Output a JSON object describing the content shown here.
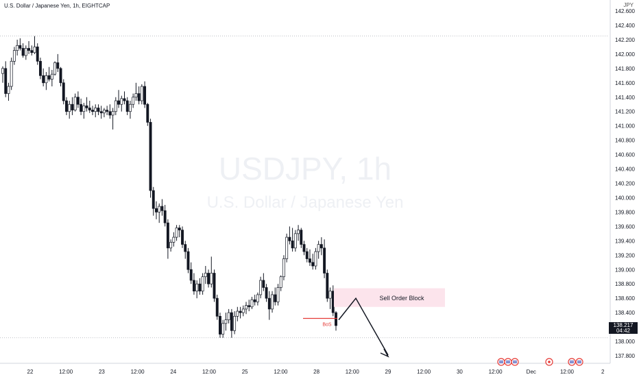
{
  "header": {
    "title": "U.S. Dollar / Japanese Yen, 1h, EIGHTCAP",
    "currency": "JPY"
  },
  "watermark": {
    "symbol": "USDJPY, 1h",
    "name": "U.S. Dollar / Japanese Yen"
  },
  "price_tag": {
    "price": "138.217",
    "countdown": "04:42"
  },
  "chart_data": {
    "type": "candlestick",
    "title": "U.S. Dollar / Japanese Yen, 1h, EIGHTCAP",
    "ylabel": "JPY",
    "ylim": [
      137.7,
      142.7
    ],
    "y_ticks": [
      "142.600",
      "142.400",
      "142.200",
      "142.000",
      "141.800",
      "141.600",
      "141.400",
      "141.200",
      "141.000",
      "140.800",
      "140.600",
      "140.400",
      "140.200",
      "140.000",
      "139.800",
      "139.600",
      "139.400",
      "139.200",
      "139.000",
      "138.800",
      "138.600",
      "138.400",
      "138.200",
      "138.000",
      "137.800"
    ],
    "x_ticks": [
      "22",
      "12:00",
      "23",
      "12:00",
      "24",
      "12:00",
      "25",
      "12:00",
      "28",
      "12:00",
      "29",
      "12:00",
      "30",
      "12:00",
      "Dec",
      "12:00",
      "2"
    ],
    "last_price": 138.217,
    "horizontal_lines": [
      142.25,
      138.05
    ],
    "annotations": {
      "order_block": {
        "label": "Sell Order Block",
        "top": 138.74,
        "bottom": 138.48
      },
      "bos": {
        "label": "BoS",
        "price": 138.32
      },
      "projection": [
        138.3,
        138.6,
        137.81
      ]
    },
    "ohlc": [
      [
        141.73,
        141.83,
        141.6,
        141.8
      ],
      [
        141.8,
        141.9,
        141.4,
        141.45
      ],
      [
        141.45,
        141.6,
        141.35,
        141.55
      ],
      [
        141.55,
        141.95,
        141.5,
        141.9
      ],
      [
        141.9,
        142.1,
        141.85,
        142.05
      ],
      [
        142.05,
        142.2,
        141.98,
        142.12
      ],
      [
        142.12,
        142.22,
        142.05,
        142.08
      ],
      [
        142.08,
        142.15,
        141.95,
        141.98
      ],
      [
        141.98,
        142.12,
        141.92,
        142.08
      ],
      [
        142.08,
        142.18,
        142.0,
        142.05
      ],
      [
        142.05,
        142.12,
        141.98,
        142.02
      ],
      [
        142.02,
        142.25,
        142.0,
        142.1
      ],
      [
        142.1,
        142.15,
        141.85,
        141.9
      ],
      [
        141.9,
        141.95,
        141.65,
        141.7
      ],
      [
        141.7,
        141.8,
        141.55,
        141.6
      ],
      [
        141.6,
        141.75,
        141.5,
        141.7
      ],
      [
        141.7,
        141.82,
        141.62,
        141.65
      ],
      [
        141.65,
        141.78,
        141.55,
        141.72
      ],
      [
        141.72,
        141.9,
        141.7,
        141.88
      ],
      [
        141.88,
        142.0,
        141.75,
        141.8
      ],
      [
        141.8,
        141.82,
        141.55,
        141.6
      ],
      [
        141.6,
        141.65,
        141.3,
        141.35
      ],
      [
        141.35,
        141.4,
        141.15,
        141.2
      ],
      [
        141.2,
        141.35,
        141.1,
        141.3
      ],
      [
        141.3,
        141.4,
        141.15,
        141.22
      ],
      [
        141.22,
        141.45,
        141.2,
        141.4
      ],
      [
        141.4,
        141.48,
        141.25,
        141.3
      ],
      [
        141.3,
        141.38,
        141.15,
        141.2
      ],
      [
        141.2,
        141.32,
        141.1,
        141.28
      ],
      [
        141.28,
        141.4,
        141.2,
        141.25
      ],
      [
        141.25,
        141.35,
        141.18,
        141.22
      ],
      [
        141.22,
        141.28,
        141.15,
        141.2
      ],
      [
        141.2,
        141.3,
        141.12,
        141.25
      ],
      [
        141.25,
        141.3,
        141.15,
        141.2
      ],
      [
        141.2,
        141.28,
        141.1,
        141.18
      ],
      [
        141.18,
        141.25,
        141.12,
        141.22
      ],
      [
        141.22,
        141.28,
        141.15,
        141.2
      ],
      [
        141.2,
        141.3,
        141.1,
        141.15
      ],
      [
        141.15,
        141.25,
        140.95,
        141.2
      ],
      [
        141.2,
        141.4,
        141.15,
        141.35
      ],
      [
        141.35,
        141.5,
        141.25,
        141.3
      ],
      [
        141.3,
        141.42,
        141.2,
        141.38
      ],
      [
        141.38,
        141.48,
        141.3,
        141.35
      ],
      [
        141.35,
        141.4,
        141.15,
        141.2
      ],
      [
        141.2,
        141.35,
        141.1,
        141.3
      ],
      [
        141.3,
        141.45,
        141.25,
        141.4
      ],
      [
        141.4,
        141.6,
        141.35,
        141.45
      ],
      [
        141.45,
        141.55,
        141.3,
        141.35
      ],
      [
        141.35,
        141.58,
        141.3,
        141.55
      ],
      [
        141.55,
        141.62,
        141.25,
        141.3
      ],
      [
        141.3,
        141.32,
        141.0,
        141.05
      ],
      [
        141.05,
        141.1,
        140.0,
        140.1
      ],
      [
        140.1,
        140.15,
        139.75,
        139.85
      ],
      [
        139.85,
        139.95,
        139.7,
        139.8
      ],
      [
        139.8,
        139.92,
        139.65,
        139.88
      ],
      [
        139.88,
        139.98,
        139.75,
        139.82
      ],
      [
        139.82,
        139.9,
        139.6,
        139.65
      ],
      [
        139.65,
        139.7,
        139.15,
        139.3
      ],
      [
        139.3,
        139.42,
        139.25,
        139.38
      ],
      [
        139.38,
        139.52,
        139.32,
        139.45
      ],
      [
        139.45,
        139.62,
        139.4,
        139.58
      ],
      [
        139.58,
        139.62,
        139.45,
        139.55
      ],
      [
        139.55,
        139.6,
        139.3,
        139.35
      ],
      [
        139.35,
        139.4,
        139.15,
        139.25
      ],
      [
        139.25,
        139.3,
        138.95,
        139.0
      ],
      [
        139.0,
        139.1,
        138.8,
        138.85
      ],
      [
        138.85,
        138.95,
        138.65,
        138.7
      ],
      [
        138.7,
        138.85,
        138.6,
        138.8
      ],
      [
        138.8,
        138.88,
        138.65,
        138.7
      ],
      [
        138.7,
        138.95,
        138.65,
        138.9
      ],
      [
        138.9,
        139.05,
        138.8,
        138.95
      ],
      [
        138.95,
        139.0,
        138.75,
        138.8
      ],
      [
        138.8,
        139.18,
        138.75,
        138.95
      ],
      [
        138.95,
        139.0,
        138.55,
        138.6
      ],
      [
        138.6,
        138.65,
        138.3,
        138.35
      ],
      [
        138.35,
        138.4,
        138.05,
        138.1
      ],
      [
        138.1,
        138.3,
        138.05,
        138.25
      ],
      [
        138.25,
        138.4,
        138.15,
        138.3
      ],
      [
        138.3,
        138.45,
        138.25,
        138.4
      ],
      [
        138.4,
        138.45,
        138.05,
        138.15
      ],
      [
        138.15,
        138.42,
        138.1,
        138.35
      ],
      [
        138.35,
        138.48,
        138.28,
        138.42
      ],
      [
        138.42,
        138.48,
        138.32,
        138.4
      ],
      [
        138.4,
        138.5,
        138.35,
        138.45
      ],
      [
        138.45,
        138.55,
        138.38,
        138.5
      ],
      [
        138.5,
        138.58,
        138.42,
        138.48
      ],
      [
        138.48,
        138.62,
        138.45,
        138.58
      ],
      [
        138.58,
        138.65,
        138.5,
        138.55
      ],
      [
        138.55,
        138.68,
        138.5,
        138.65
      ],
      [
        138.65,
        138.9,
        138.6,
        138.85
      ],
      [
        138.85,
        138.95,
        138.7,
        138.75
      ],
      [
        138.75,
        138.8,
        138.55,
        138.6
      ],
      [
        138.6,
        138.7,
        138.3,
        138.45
      ],
      [
        138.45,
        138.7,
        138.4,
        138.65
      ],
      [
        138.65,
        138.75,
        138.5,
        138.55
      ],
      [
        138.55,
        138.8,
        138.5,
        138.75
      ],
      [
        138.75,
        138.92,
        138.7,
        138.9
      ],
      [
        138.9,
        139.2,
        138.85,
        139.15
      ],
      [
        139.15,
        139.5,
        139.1,
        139.45
      ],
      [
        139.45,
        139.6,
        139.35,
        139.4
      ],
      [
        139.4,
        139.58,
        139.25,
        139.3
      ],
      [
        139.3,
        139.55,
        139.25,
        139.5
      ],
      [
        139.5,
        139.62,
        139.4,
        139.55
      ],
      [
        139.55,
        139.58,
        139.3,
        139.35
      ],
      [
        139.35,
        139.4,
        139.2,
        139.25
      ],
      [
        139.25,
        139.3,
        139.1,
        139.15
      ],
      [
        139.15,
        139.28,
        139.05,
        139.1
      ],
      [
        139.1,
        139.22,
        139.0,
        139.05
      ],
      [
        139.05,
        139.3,
        139.0,
        139.25
      ],
      [
        139.25,
        139.4,
        139.15,
        139.35
      ],
      [
        139.35,
        139.45,
        139.2,
        139.3
      ],
      [
        139.3,
        139.42,
        138.88,
        138.95
      ],
      [
        138.95,
        139.0,
        138.55,
        138.6
      ],
      [
        138.6,
        138.75,
        138.45,
        138.7
      ],
      [
        138.7,
        138.78,
        138.35,
        138.4
      ],
      [
        138.4,
        138.42,
        138.15,
        138.22
      ]
    ]
  }
}
